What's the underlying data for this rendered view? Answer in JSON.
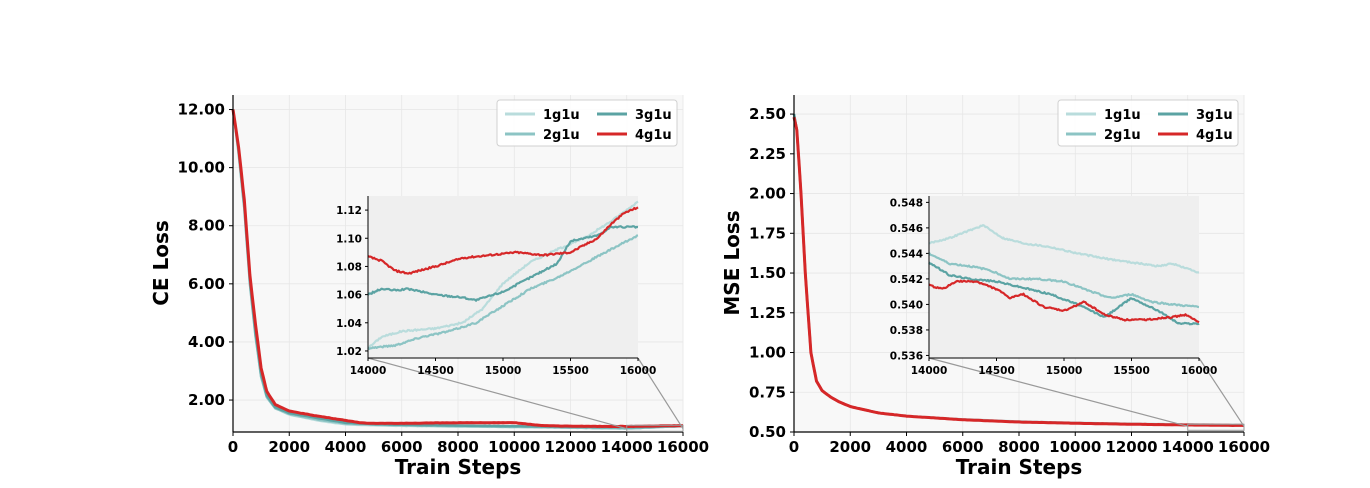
{
  "colors": {
    "1g1u": "#b9dcdc",
    "2g1u": "#8cc4c4",
    "3g1u": "#5ba3a3",
    "4g1u": "#d62728"
  },
  "chart_data": [
    {
      "type": "line",
      "title": "",
      "xlabel": "Train Steps",
      "ylabel": "CE Loss",
      "xlim": [
        0,
        16000
      ],
      "ylim": [
        0.9,
        12.5
      ],
      "xticks": [
        "0",
        "2000",
        "4000",
        "6000",
        "8000",
        "10000",
        "12000",
        "14000",
        "16000"
      ],
      "yticks": [
        "2.00",
        "4.00",
        "6.00",
        "8.00",
        "10.00",
        "12.00"
      ],
      "legend": {
        "placement": "top-right",
        "columns": 2,
        "entries": [
          "1g1u",
          "2g1u",
          "3g1u",
          "4g1u"
        ]
      },
      "series": [
        {
          "name": "1g1u",
          "x": [
            0,
            200,
            400,
            600,
            800,
            1000,
            1200,
            1500,
            2000,
            3000,
            4000,
            5000,
            6000,
            8000,
            10000,
            12000,
            14000,
            16000
          ],
          "y": [
            12.0,
            10.5,
            8.6,
            6.0,
            4.2,
            2.8,
            2.1,
            1.72,
            1.5,
            1.3,
            1.16,
            1.13,
            1.11,
            1.09,
            1.07,
            1.05,
            1.03,
            1.12
          ]
        },
        {
          "name": "2g1u",
          "x": [
            0,
            200,
            400,
            600,
            800,
            1000,
            1200,
            1500,
            2000,
            3000,
            4000,
            5000,
            6000,
            8000,
            10000,
            12000,
            14000,
            16000
          ],
          "y": [
            12.0,
            10.5,
            8.6,
            6.0,
            4.2,
            2.8,
            2.1,
            1.72,
            1.52,
            1.33,
            1.19,
            1.15,
            1.13,
            1.1,
            1.08,
            1.05,
            1.02,
            1.1
          ]
        },
        {
          "name": "3g1u",
          "x": [
            0,
            200,
            400,
            600,
            800,
            1000,
            1200,
            1500,
            2000,
            3000,
            4000,
            5000,
            6000,
            8000,
            10000,
            12000,
            14000,
            16000
          ],
          "y": [
            12.0,
            10.6,
            8.7,
            6.1,
            4.3,
            2.9,
            2.15,
            1.75,
            1.55,
            1.38,
            1.22,
            1.17,
            1.15,
            1.12,
            1.1,
            1.08,
            1.06,
            1.11
          ]
        },
        {
          "name": "4g1u",
          "x": [
            0,
            200,
            400,
            600,
            800,
            1000,
            1200,
            1500,
            2000,
            3000,
            4000,
            4500,
            5000,
            6000,
            8000,
            10000,
            11000,
            12000,
            14000,
            16000
          ],
          "y": [
            12.0,
            10.7,
            8.9,
            6.3,
            4.6,
            3.1,
            2.3,
            1.85,
            1.62,
            1.45,
            1.3,
            1.22,
            1.2,
            1.2,
            1.22,
            1.22,
            1.12,
            1.1,
            1.09,
            1.12
          ]
        }
      ],
      "inset": {
        "xlim": [
          14000,
          16000
        ],
        "ylim": [
          1.015,
          1.13
        ],
        "xticks": [
          "14000",
          "14500",
          "15000",
          "15500",
          "16000"
        ],
        "yticks": [
          "1.02",
          "1.04",
          "1.06",
          "1.08",
          "1.10",
          "1.12"
        ],
        "series": [
          {
            "name": "1g1u",
            "x": [
              14000,
              14100,
              14250,
              14500,
              14700,
              14850,
              15000,
              15200,
              15400,
              15600,
              15800,
              16000
            ],
            "y": [
              1.022,
              1.03,
              1.034,
              1.036,
              1.04,
              1.05,
              1.068,
              1.083,
              1.092,
              1.1,
              1.112,
              1.126
            ]
          },
          {
            "name": "2g1u",
            "x": [
              14000,
              14200,
              14400,
              14600,
              14800,
              15000,
              15200,
              15400,
              15600,
              15800,
              16000
            ],
            "y": [
              1.022,
              1.024,
              1.03,
              1.034,
              1.04,
              1.052,
              1.064,
              1.072,
              1.082,
              1.092,
              1.102
            ]
          },
          {
            "name": "3g1u",
            "x": [
              14000,
              14100,
              14200,
              14300,
              14500,
              14700,
              14800,
              15000,
              15200,
              15400,
              15500,
              15700,
              15800,
              16000
            ],
            "y": [
              1.06,
              1.064,
              1.063,
              1.064,
              1.06,
              1.058,
              1.056,
              1.062,
              1.072,
              1.082,
              1.098,
              1.102,
              1.108,
              1.108
            ]
          },
          {
            "name": "4g1u",
            "x": [
              14000,
              14100,
              14200,
              14300,
              14500,
              14700,
              14900,
              15100,
              15300,
              15500,
              15700,
              15800,
              15900,
              16000
            ],
            "y": [
              1.087,
              1.084,
              1.077,
              1.075,
              1.08,
              1.086,
              1.088,
              1.09,
              1.088,
              1.09,
              1.1,
              1.11,
              1.118,
              1.122
            ]
          }
        ]
      }
    },
    {
      "type": "line",
      "title": "",
      "xlabel": "Train Steps",
      "ylabel": "MSE Loss",
      "xlim": [
        0,
        16000
      ],
      "ylim": [
        0.5,
        2.62
      ],
      "xticks": [
        "0",
        "2000",
        "4000",
        "6000",
        "8000",
        "10000",
        "12000",
        "14000",
        "16000"
      ],
      "yticks": [
        "0.50",
        "0.75",
        "1.00",
        "1.25",
        "1.50",
        "1.75",
        "2.00",
        "2.25",
        "2.50"
      ],
      "legend": {
        "placement": "top-right",
        "columns": 2,
        "entries": [
          "1g1u",
          "2g1u",
          "3g1u",
          "4g1u"
        ]
      },
      "series": [
        {
          "name": "1g1u",
          "x": [
            0,
            100,
            250,
            400,
            600,
            800,
            1000,
            1300,
            1600,
            2000,
            3000,
            4000,
            6000,
            8000,
            10000,
            12000,
            14000,
            16000
          ],
          "y": [
            2.5,
            2.4,
            2.0,
            1.5,
            1.0,
            0.82,
            0.76,
            0.72,
            0.69,
            0.66,
            0.62,
            0.6,
            0.58,
            0.566,
            0.558,
            0.552,
            0.548,
            0.545
          ]
        },
        {
          "name": "2g1u",
          "x": [
            0,
            100,
            250,
            400,
            600,
            800,
            1000,
            1300,
            1600,
            2000,
            3000,
            4000,
            6000,
            8000,
            10000,
            12000,
            14000,
            16000
          ],
          "y": [
            2.5,
            2.4,
            2.0,
            1.5,
            1.0,
            0.82,
            0.76,
            0.72,
            0.69,
            0.66,
            0.62,
            0.6,
            0.578,
            0.564,
            0.556,
            0.55,
            0.545,
            0.542
          ]
        },
        {
          "name": "3g1u",
          "x": [
            0,
            100,
            250,
            400,
            600,
            800,
            1000,
            1300,
            1600,
            2000,
            3000,
            4000,
            6000,
            8000,
            10000,
            12000,
            14000,
            16000
          ],
          "y": [
            2.5,
            2.4,
            2.0,
            1.5,
            1.0,
            0.82,
            0.76,
            0.72,
            0.69,
            0.66,
            0.62,
            0.6,
            0.577,
            0.563,
            0.555,
            0.549,
            0.544,
            0.541
          ]
        },
        {
          "name": "4g1u",
          "x": [
            0,
            100,
            250,
            400,
            600,
            800,
            1000,
            1300,
            1600,
            2000,
            3000,
            4000,
            6000,
            8000,
            10000,
            12000,
            14000,
            16000
          ],
          "y": [
            2.48,
            2.4,
            2.0,
            1.5,
            1.0,
            0.82,
            0.76,
            0.72,
            0.69,
            0.66,
            0.62,
            0.6,
            0.577,
            0.563,
            0.555,
            0.549,
            0.544,
            0.541
          ]
        }
      ],
      "inset": {
        "xlim": [
          14000,
          16000
        ],
        "ylim": [
          0.5358,
          0.5485
        ],
        "xticks": [
          "14000",
          "14500",
          "15000",
          "15500",
          "16000"
        ],
        "yticks": [
          "0.536",
          "0.538",
          "0.540",
          "0.542",
          "0.544",
          "0.546",
          "0.548"
        ],
        "series": [
          {
            "name": "1g1u",
            "x": [
              14000,
              14150,
              14300,
              14400,
              14550,
              14700,
              14900,
              15100,
              15300,
              15500,
              15700,
              15800,
              16000
            ],
            "y": [
              0.5448,
              0.5452,
              0.5458,
              0.5462,
              0.5452,
              0.5448,
              0.5445,
              0.544,
              0.5436,
              0.5433,
              0.543,
              0.5432,
              0.5425
            ]
          },
          {
            "name": "2g1u",
            "x": [
              14000,
              14150,
              14300,
              14450,
              14600,
              14800,
              15000,
              15200,
              15350,
              15500,
              15650,
              15800,
              16000
            ],
            "y": [
              0.544,
              0.5432,
              0.543,
              0.5427,
              0.542,
              0.542,
              0.5418,
              0.541,
              0.5405,
              0.5408,
              0.5402,
              0.54,
              0.5398
            ]
          },
          {
            "name": "3g1u",
            "x": [
              14000,
              14150,
              14300,
              14500,
              14700,
              14900,
              15100,
              15300,
              15500,
              15700,
              15850,
              16000
            ],
            "y": [
              0.5433,
              0.5423,
              0.542,
              0.5418,
              0.5413,
              0.5408,
              0.54,
              0.539,
              0.5405,
              0.5395,
              0.5385,
              0.5385
            ]
          },
          {
            "name": "4g1u",
            "x": [
              14000,
              14100,
              14200,
              14350,
              14500,
              14600,
              14700,
              14850,
              15000,
              15150,
              15300,
              15450,
              15600,
              15800,
              15900,
              16000
            ],
            "y": [
              0.5415,
              0.5412,
              0.5418,
              0.5418,
              0.5412,
              0.5405,
              0.5408,
              0.5398,
              0.5395,
              0.5402,
              0.5392,
              0.5388,
              0.5388,
              0.539,
              0.5392,
              0.5386
            ]
          }
        ]
      }
    }
  ]
}
